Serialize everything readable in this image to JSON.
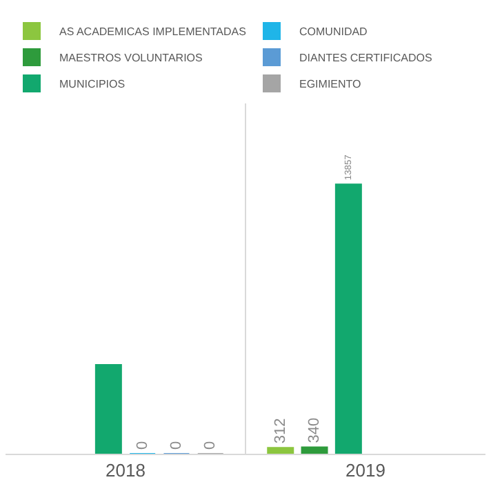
{
  "chart_data": {
    "type": "bar",
    "categories": [
      "2018",
      "2019"
    ],
    "grid": "x",
    "legend": "top",
    "series": [
      {
        "name": "AS ACADEMICAS IMPLEMENTADAS",
        "color": "#8cc63f",
        "values": [
          null,
          312
        ],
        "value_labels": [
          null,
          "312"
        ]
      },
      {
        "name": "MAESTROS VOLUNTARIOS",
        "color": "#2e9b3c",
        "values": [
          null,
          340
        ],
        "value_labels": [
          null,
          "340"
        ]
      },
      {
        "name": "MUNICIPIOS",
        "color": "#12a86e",
        "values": [
          4570,
          13857
        ],
        "value_labels": [
          null,
          "13857"
        ]
      },
      {
        "name": "COMUNIDAD",
        "color": "#1fb5e8",
        "values": [
          0,
          null
        ],
        "value_labels": [
          "0",
          null
        ]
      },
      {
        "name": "DIANTES CERTIFICADOS",
        "color": "#5b9bd5",
        "values": [
          0,
          null
        ],
        "value_labels": [
          "0",
          null
        ]
      },
      {
        "name": "EGIMIENTO",
        "color": "#a5a5a5",
        "values": [
          0,
          null
        ],
        "value_labels": [
          "0",
          null
        ]
      }
    ]
  }
}
